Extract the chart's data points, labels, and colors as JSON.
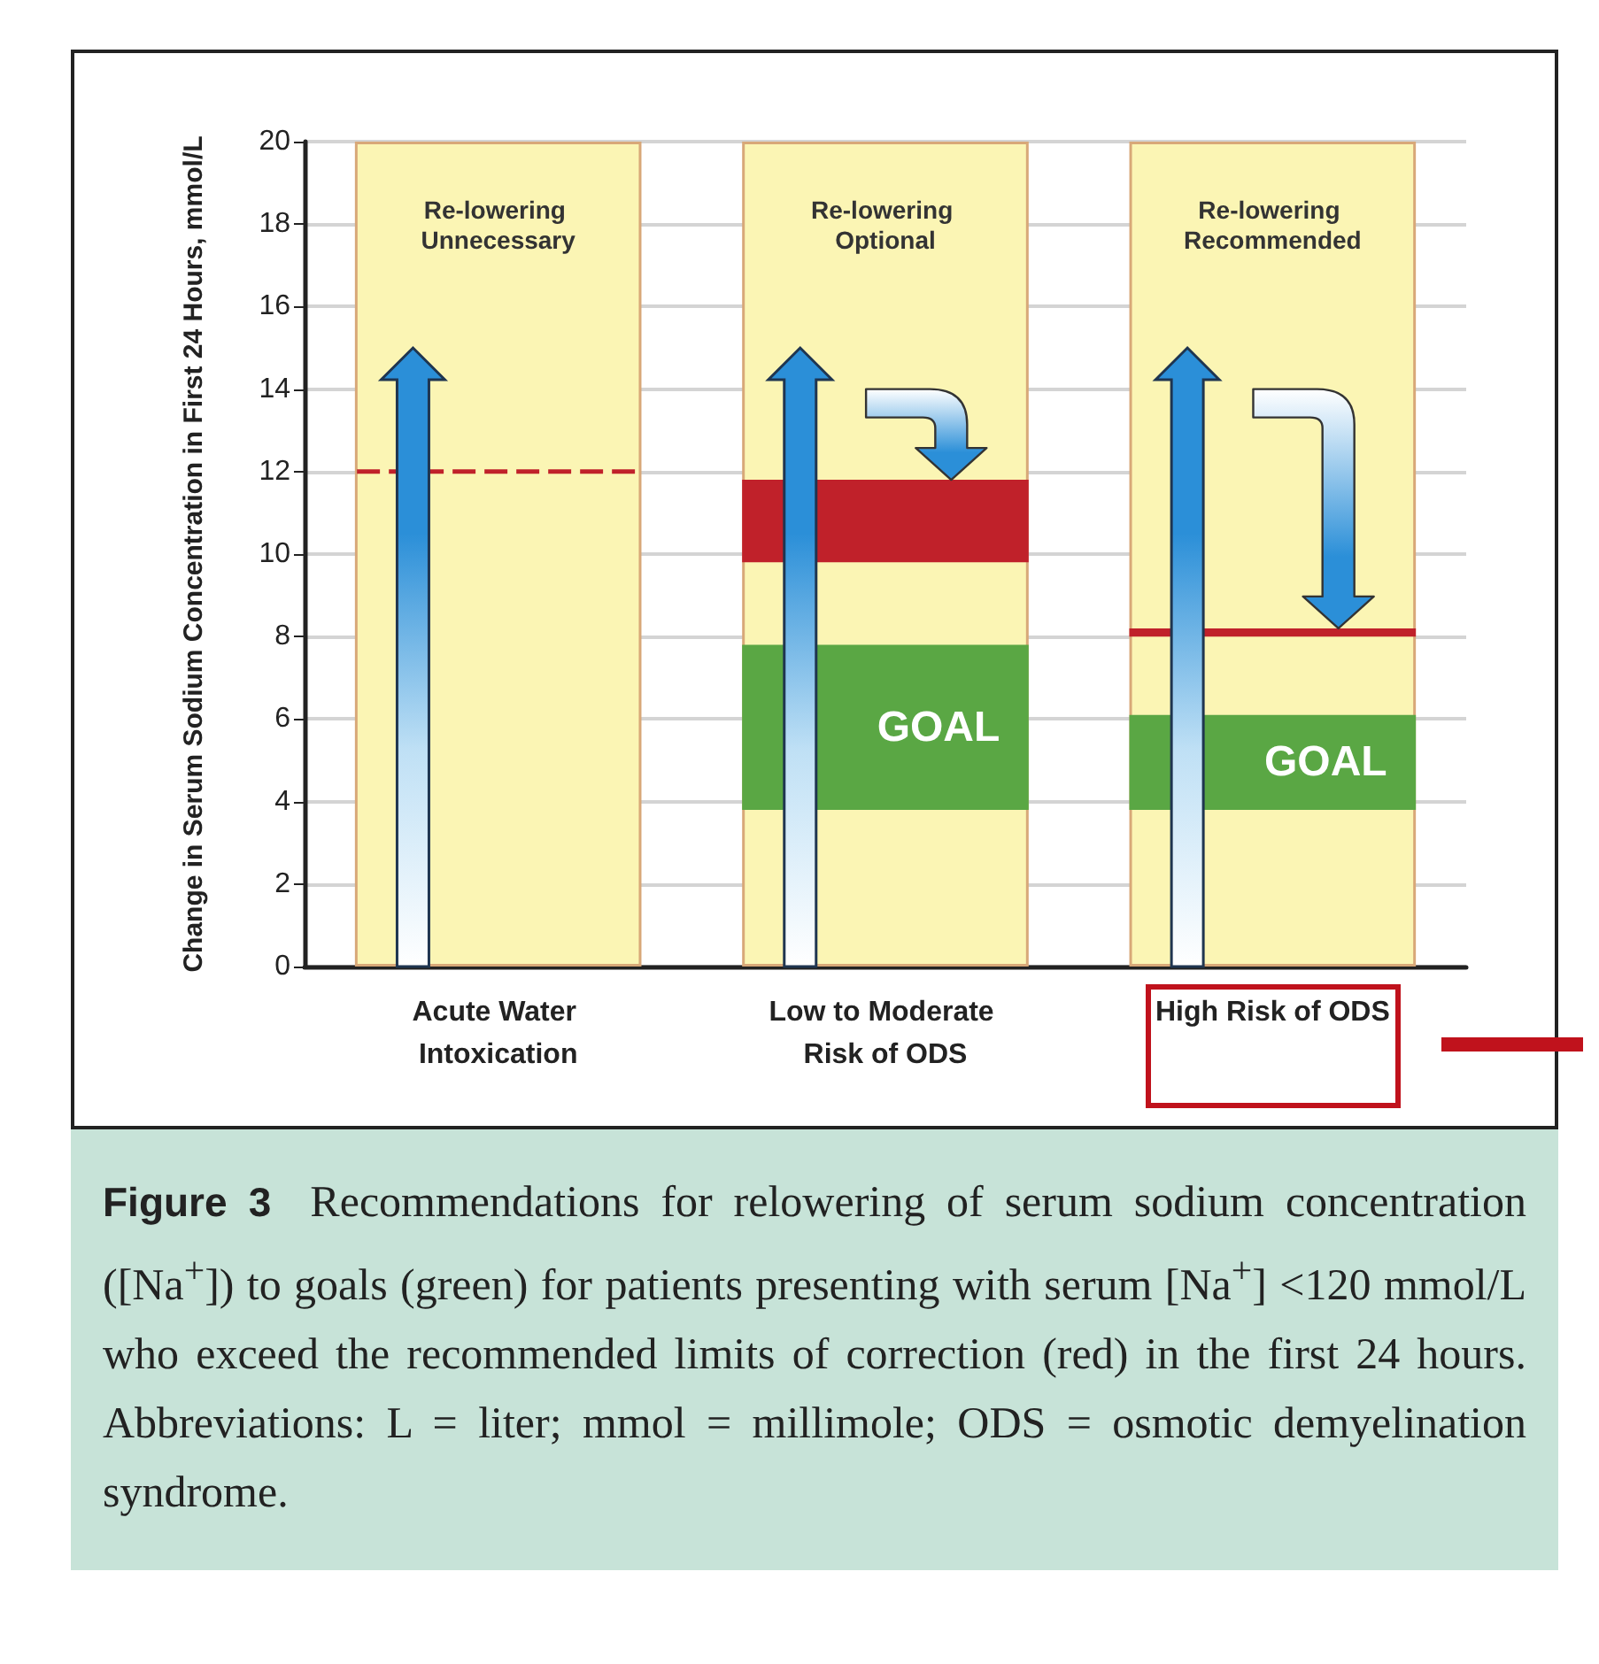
{
  "chart_data": {
    "type": "bar",
    "ylabel": "Change in Serum Sodium Concentration in First 24 Hours, mmol/L",
    "categories": [
      "Acute Water Intoxication",
      "Low to Moderate Risk of ODS",
      "High Risk of ODS"
    ],
    "series": [
      {
        "color": "#fbf5b4",
        "base": [
          0,
          0,
          0
        ],
        "values": [
          20,
          20,
          20
        ],
        "value_labels": [
          "Re-lowering Unnecessary",
          "Re-lowering Optional",
          "Re-lowering Recommended"
        ]
      },
      {
        "color": "#5aa744",
        "base": [
          null,
          3.8,
          3.8
        ],
        "values": [
          null,
          4,
          2.3
        ],
        "value_labels": [
          null,
          "GOAL",
          "GOAL"
        ]
      },
      {
        "color": "#c0212a",
        "base": [
          null,
          9.8,
          null
        ],
        "values": [
          null,
          2,
          null
        ]
      },
      {
        "color": "#c0212a",
        "line_style": "dashed",
        "base": [
          11.95,
          null,
          null
        ],
        "values": [
          0.1,
          null,
          null
        ]
      },
      {
        "color": "#c0212a",
        "base": [
          null,
          null,
          8
        ],
        "values": [
          null,
          null,
          0.2
        ]
      }
    ],
    "ylim": [
      0,
      20
    ],
    "yticks": [
      0,
      2,
      4,
      6,
      8,
      10,
      12,
      14,
      16,
      18,
      20
    ],
    "grid": "y",
    "annotations": [
      "Figure 3",
      "Recommendations for relowering of serum sodium concentration ([Na$^{+}$]) to goals (green) for patients presenting with serum [Na$^{+}$] <120 mmol/L who exceed the recommended limits of correction (red) in the first 24 hours. Abbreviations: L = liter; mmol = millimole; ODS = osmotic demyelination syndrome."
    ]
  }
}
